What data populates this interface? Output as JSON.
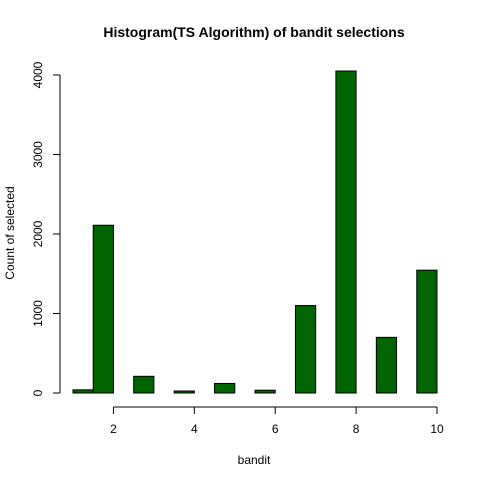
{
  "chart_data": {
    "type": "bar",
    "title": "Histogram(TS Algorithm) of bandit selections",
    "xlabel": "bandit",
    "ylabel": "Count of selected",
    "x_ticks": [
      2,
      4,
      6,
      8,
      10
    ],
    "y_ticks": [
      0,
      1000,
      2000,
      3000,
      4000
    ],
    "xlim": [
      1,
      10
    ],
    "ylim": [
      0,
      4000
    ],
    "bar_color": "#006400",
    "bar_border_color": "#000000",
    "bars": [
      {
        "x0": 1.0,
        "x1": 1.5,
        "value": 40
      },
      {
        "x0": 1.5,
        "x1": 2.0,
        "value": 2110
      },
      {
        "x0": 2.5,
        "x1": 3.0,
        "value": 210
      },
      {
        "x0": 3.5,
        "x1": 4.0,
        "value": 25
      },
      {
        "x0": 4.5,
        "x1": 5.0,
        "value": 120
      },
      {
        "x0": 5.5,
        "x1": 6.0,
        "value": 35
      },
      {
        "x0": 6.5,
        "x1": 7.0,
        "value": 1100
      },
      {
        "x0": 7.5,
        "x1": 8.0,
        "value": 4050
      },
      {
        "x0": 8.5,
        "x1": 9.0,
        "value": 700
      },
      {
        "x0": 9.5,
        "x1": 10.0,
        "value": 1545
      }
    ]
  }
}
